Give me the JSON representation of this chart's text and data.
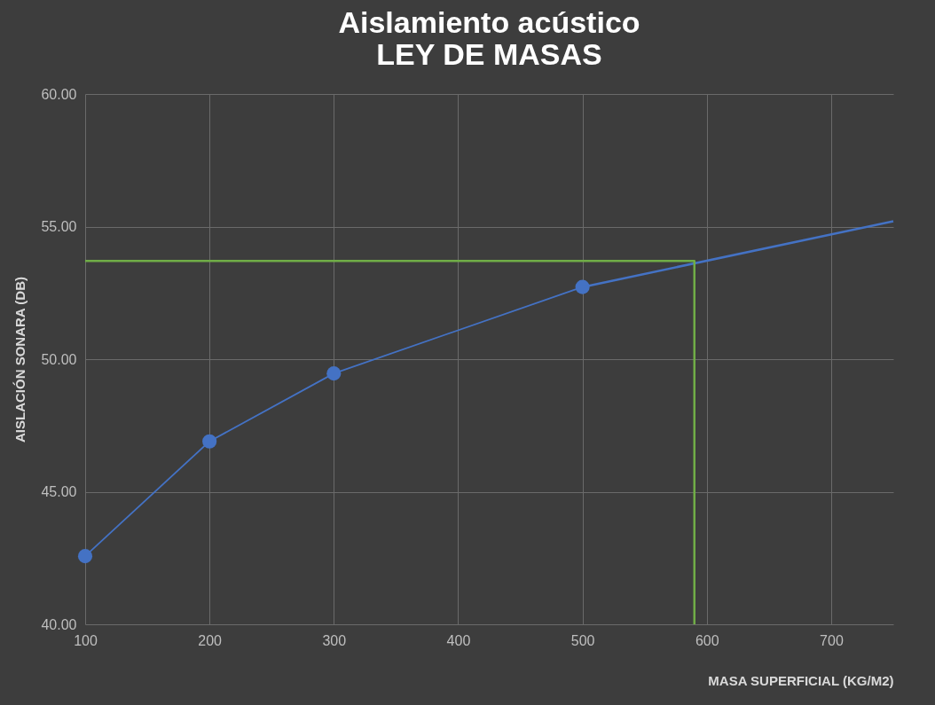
{
  "chart_data": {
    "type": "line",
    "title": [
      "Aislamiento acústico",
      "LEY DE MASAS"
    ],
    "xlabel": "MASA SUPERFICIAL (KG/M2)",
    "ylabel": "AISLACIÓN SONARA (DB)",
    "x": [
      100,
      200,
      300,
      500
    ],
    "series": [
      {
        "color": "#4472c4",
        "values": [
          42.57,
          46.9,
          49.46,
          52.72
        ],
        "marker": "circle"
      },
      {
        "color": "#4472c4",
        "x": [
          500,
          750
        ],
        "values": [
          52.72,
          55.2
        ],
        "marker": "none"
      },
      {
        "color": "#70ad47",
        "x": [
          100,
          590,
          590
        ],
        "values": [
          53.7,
          53.7,
          40
        ],
        "marker": "none"
      }
    ],
    "xlim": [
      100,
      750
    ],
    "xticks": [
      100,
      200,
      300,
      400,
      500,
      600,
      700
    ],
    "ylim": [
      40,
      60
    ],
    "yticks": [
      {
        "value": 40,
        "label": "40.00"
      },
      {
        "value": 45,
        "label": "45.00"
      },
      {
        "value": 50,
        "label": "50.00"
      },
      {
        "value": 55,
        "label": "55.00"
      },
      {
        "value": 60,
        "label": "60.00"
      }
    ],
    "grid": true,
    "line_style": "solid"
  }
}
